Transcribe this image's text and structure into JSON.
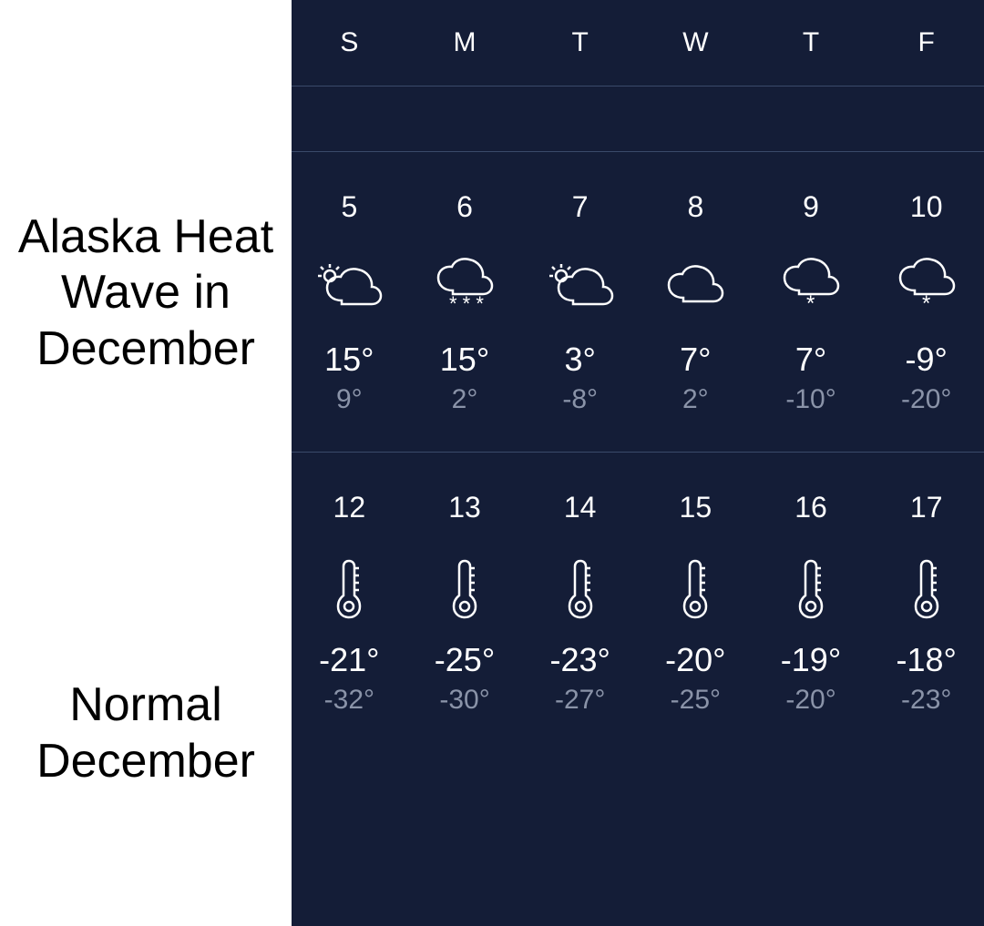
{
  "colors": {
    "panel_bg": "#ffffff",
    "weather_bg": "#141d37",
    "text_primary": "#ffffff",
    "text_muted": "#8a93a8",
    "divider": "#3a4a6a",
    "label_text": "#000000"
  },
  "font_sizes": {
    "label": 52,
    "day_letter": 30,
    "date": 32,
    "hi": 36,
    "lo": 30
  },
  "labels": {
    "row1": "Alaska Heat Wave in December",
    "row2": "Normal December"
  },
  "header_days": [
    "S",
    "M",
    "T",
    "W",
    "T",
    "F"
  ],
  "rows": [
    {
      "days": [
        {
          "date": "5",
          "icon": "partly-cloudy",
          "hi": "15°",
          "lo": "9°"
        },
        {
          "date": "6",
          "icon": "cloud-snow-heavy",
          "hi": "15°",
          "lo": "2°"
        },
        {
          "date": "7",
          "icon": "partly-cloudy",
          "hi": "3°",
          "lo": "-8°"
        },
        {
          "date": "8",
          "icon": "cloud",
          "hi": "7°",
          "lo": "2°"
        },
        {
          "date": "9",
          "icon": "cloud-snow",
          "hi": "7°",
          "lo": "-10°"
        },
        {
          "date": "10",
          "icon": "cloud-snow",
          "hi": "-9°",
          "lo": "-20°"
        }
      ]
    },
    {
      "days": [
        {
          "date": "12",
          "icon": "thermometer",
          "hi": "-21°",
          "lo": "-32°"
        },
        {
          "date": "13",
          "icon": "thermometer",
          "hi": "-25°",
          "lo": "-30°"
        },
        {
          "date": "14",
          "icon": "thermometer",
          "hi": "-23°",
          "lo": "-27°"
        },
        {
          "date": "15",
          "icon": "thermometer",
          "hi": "-20°",
          "lo": "-25°"
        },
        {
          "date": "16",
          "icon": "thermometer",
          "hi": "-19°",
          "lo": "-20°"
        },
        {
          "date": "17",
          "icon": "thermometer",
          "hi": "-18°",
          "lo": "-23°"
        }
      ]
    }
  ]
}
